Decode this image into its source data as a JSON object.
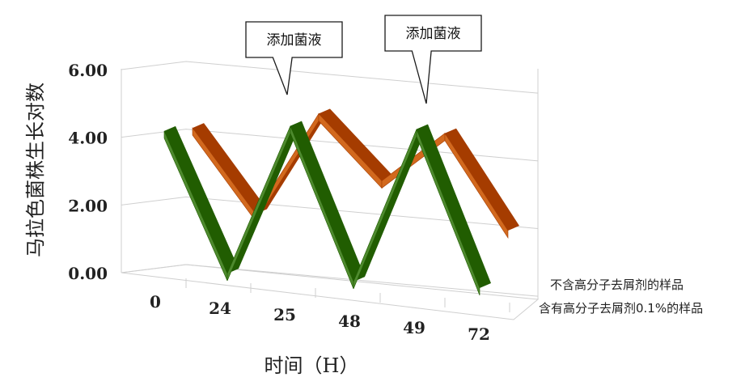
{
  "chart_data": {
    "type": "line",
    "title": "",
    "xlabel": "时间（H）",
    "ylabel": "马拉色菌株生长对数",
    "categories": [
      "0",
      "24",
      "25",
      "48",
      "49",
      "72"
    ],
    "yticks": [
      "0.00",
      "2.00",
      "4.00",
      "6.00"
    ],
    "ylim": [
      0,
      6
    ],
    "series": [
      {
        "name": "不含高分子去屑剂的样品",
        "color": "#D2691E",
        "values": [
          4.45,
          2.25,
          5.0,
          3.3,
          4.65,
          2.15
        ]
      },
      {
        "name": "含有高分子去屑剂0.1%的样品",
        "color": "#4E8A2E",
        "values": [
          4.3,
          0.05,
          4.65,
          0.0,
          4.75,
          0.0
        ]
      }
    ],
    "annotations": [
      {
        "text": "添加菌液",
        "category": "25",
        "series": 1
      },
      {
        "text": "添加菌液",
        "category": "49",
        "series": 1
      }
    ],
    "grid": true,
    "legend": "right"
  }
}
